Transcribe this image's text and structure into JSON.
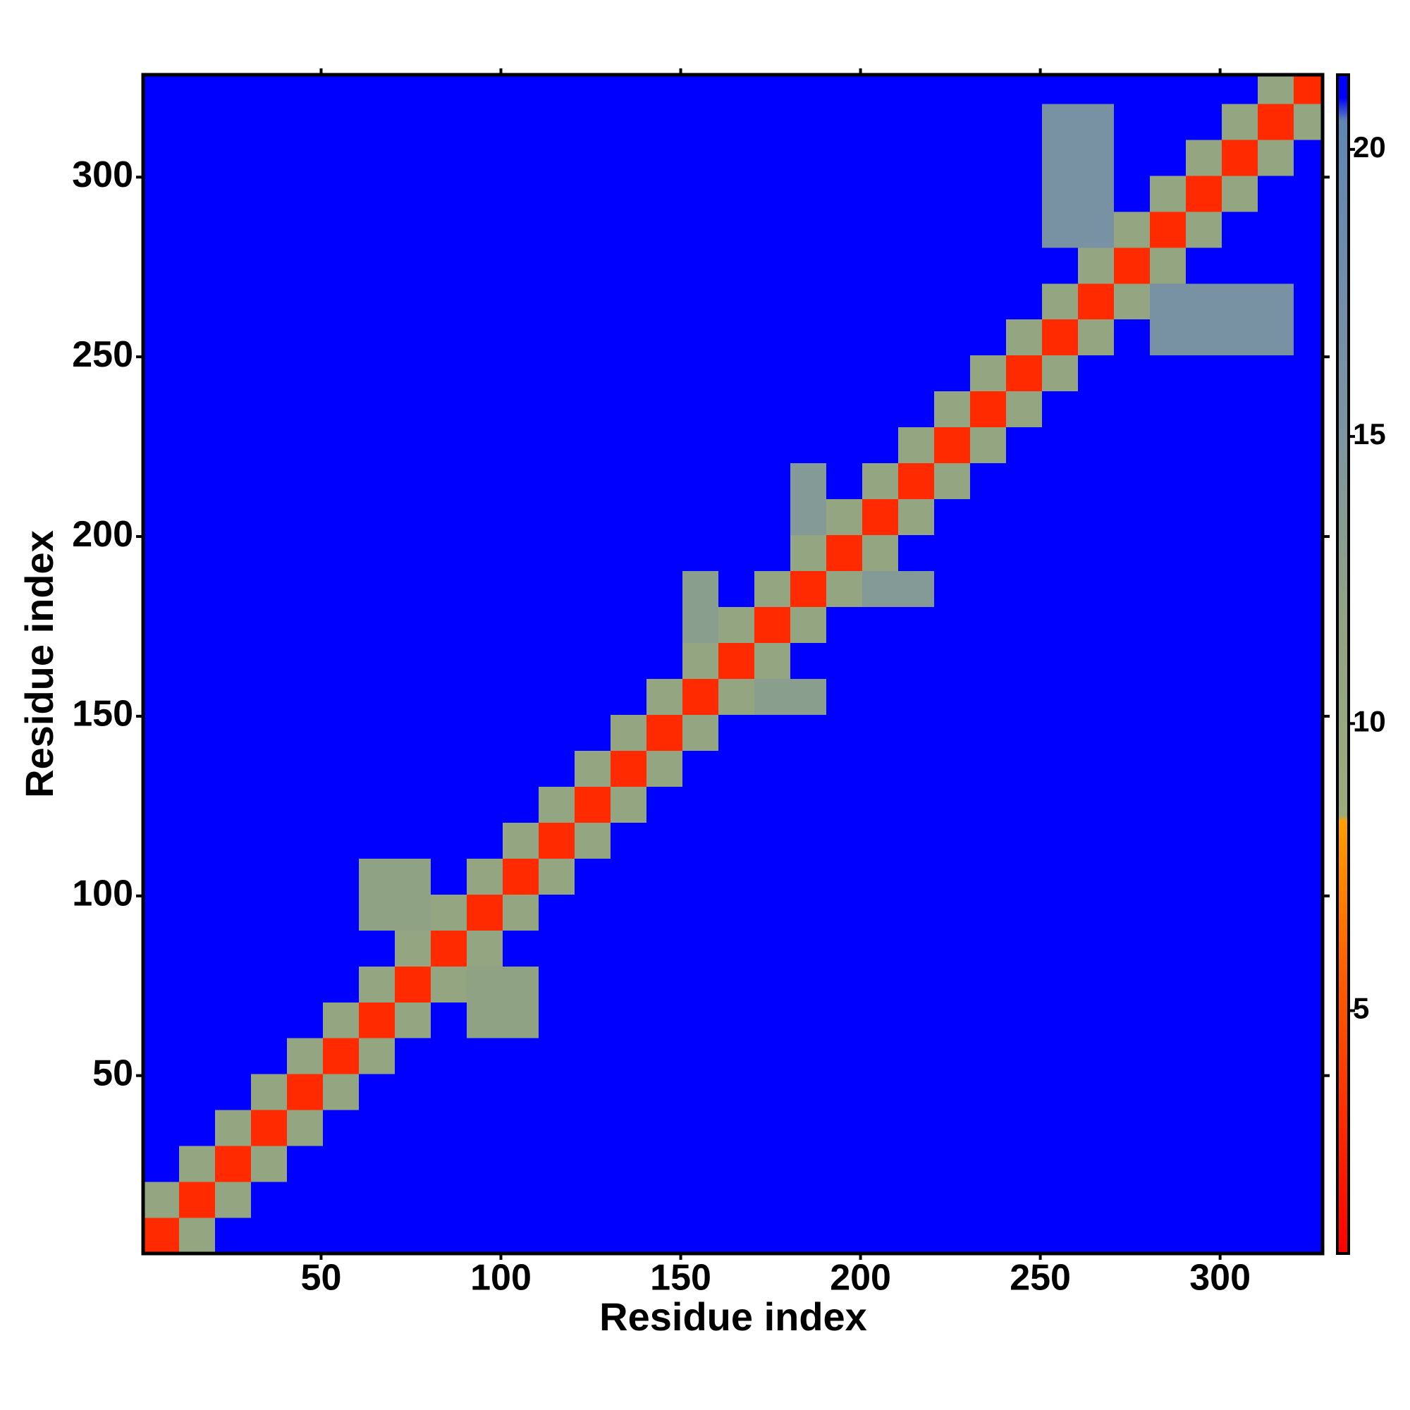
{
  "chart_data": {
    "type": "heatmap",
    "xlabel": "Residue index",
    "ylabel": "Residue index",
    "xlim": [
      0.5,
      328.5
    ],
    "ylim": [
      0.5,
      328.5
    ],
    "xticks": [
      50,
      100,
      150,
      200,
      250,
      300
    ],
    "yticks": [
      50,
      100,
      150,
      200,
      250,
      300
    ],
    "xbins": [
      0.5,
      10.5,
      20.5,
      30.5,
      40.5,
      50.5,
      60.5,
      70.5,
      80.5,
      90.5,
      100.5,
      110.5,
      120.5,
      130.5,
      140.5,
      150.5,
      160.5,
      170.5,
      180.5,
      190.5,
      200.5,
      210.5,
      220.5,
      230.5,
      240.5,
      250.5,
      260.5,
      270.5,
      280.5,
      290.5,
      300.5,
      310.5,
      320.5,
      328.5
    ],
    "ybins": [
      0.5,
      10.5,
      20.5,
      30.5,
      40.5,
      50.5,
      60.5,
      70.5,
      80.5,
      90.5,
      100.5,
      110.5,
      120.5,
      130.5,
      140.5,
      150.5,
      160.5,
      170.5,
      180.5,
      190.5,
      200.5,
      210.5,
      220.5,
      230.5,
      240.5,
      250.5,
      260.5,
      270.5,
      280.5,
      290.5,
      300.5,
      310.5,
      320.5,
      328.5
    ],
    "z": [
      [
        3,
        11,
        21,
        21,
        21,
        21,
        21,
        21,
        21,
        21,
        21,
        21,
        21,
        21,
        21,
        21,
        21,
        21,
        21,
        21,
        21,
        21,
        21,
        21,
        21,
        21,
        21,
        21,
        21,
        21,
        21,
        21,
        21
      ],
      [
        11,
        3,
        11,
        21,
        21,
        21,
        21,
        21,
        21,
        21,
        21,
        21,
        21,
        21,
        21,
        21,
        21,
        21,
        21,
        21,
        21,
        21,
        21,
        21,
        21,
        21,
        21,
        21,
        21,
        21,
        21,
        21,
        21
      ],
      [
        21,
        11,
        3,
        11,
        21,
        21,
        21,
        21,
        21,
        21,
        21,
        21,
        21,
        21,
        21,
        21,
        21,
        21,
        21,
        21,
        21,
        21,
        21,
        21,
        21,
        21,
        21,
        21,
        21,
        21,
        21,
        21,
        21
      ],
      [
        21,
        21,
        11,
        3,
        11,
        21,
        21,
        21,
        21,
        21,
        21,
        21,
        21,
        21,
        21,
        21,
        21,
        21,
        21,
        21,
        21,
        21,
        21,
        21,
        21,
        21,
        21,
        21,
        21,
        21,
        21,
        21,
        21
      ],
      [
        21,
        21,
        21,
        11,
        3,
        11,
        21,
        21,
        21,
        21,
        21,
        21,
        21,
        21,
        21,
        21,
        21,
        21,
        21,
        21,
        21,
        21,
        21,
        21,
        21,
        21,
        21,
        21,
        21,
        21,
        21,
        21,
        21
      ],
      [
        21,
        21,
        21,
        21,
        11,
        3,
        11,
        21,
        21,
        21,
        21,
        21,
        21,
        21,
        21,
        21,
        21,
        21,
        21,
        21,
        21,
        21,
        21,
        21,
        21,
        21,
        21,
        21,
        21,
        21,
        21,
        21,
        21
      ],
      [
        21,
        21,
        21,
        21,
        21,
        11,
        3,
        11,
        21,
        12,
        12,
        21,
        21,
        21,
        21,
        21,
        21,
        21,
        21,
        21,
        21,
        21,
        21,
        21,
        21,
        21,
        21,
        21,
        21,
        21,
        21,
        21,
        21
      ],
      [
        21,
        21,
        21,
        21,
        21,
        21,
        11,
        3,
        11,
        12,
        12,
        21,
        21,
        21,
        21,
        21,
        21,
        21,
        21,
        21,
        21,
        21,
        21,
        21,
        21,
        21,
        21,
        21,
        21,
        21,
        21,
        21,
        21
      ],
      [
        21,
        21,
        21,
        21,
        21,
        21,
        21,
        11,
        3,
        11,
        21,
        21,
        21,
        21,
        21,
        21,
        21,
        21,
        21,
        21,
        21,
        21,
        21,
        21,
        21,
        21,
        21,
        21,
        21,
        21,
        21,
        21,
        21
      ],
      [
        21,
        21,
        21,
        21,
        21,
        21,
        12,
        12,
        11,
        3,
        11,
        21,
        21,
        21,
        21,
        21,
        21,
        21,
        21,
        21,
        21,
        21,
        21,
        21,
        21,
        21,
        21,
        21,
        21,
        21,
        21,
        21,
        21
      ],
      [
        21,
        21,
        21,
        21,
        21,
        21,
        12,
        12,
        21,
        11,
        3,
        11,
        21,
        21,
        21,
        21,
        21,
        21,
        21,
        21,
        21,
        21,
        21,
        21,
        21,
        21,
        21,
        21,
        21,
        21,
        21,
        21,
        21
      ],
      [
        21,
        21,
        21,
        21,
        21,
        21,
        21,
        21,
        21,
        21,
        11,
        3,
        11,
        21,
        21,
        21,
        21,
        21,
        21,
        21,
        21,
        21,
        21,
        21,
        21,
        21,
        21,
        21,
        21,
        21,
        21,
        21,
        21
      ],
      [
        21,
        21,
        21,
        21,
        21,
        21,
        21,
        21,
        21,
        21,
        21,
        11,
        3,
        11,
        21,
        21,
        21,
        21,
        21,
        21,
        21,
        21,
        21,
        21,
        21,
        21,
        21,
        21,
        21,
        21,
        21,
        21,
        21
      ],
      [
        21,
        21,
        21,
        21,
        21,
        21,
        21,
        21,
        21,
        21,
        21,
        21,
        11,
        3,
        11,
        21,
        21,
        21,
        21,
        21,
        21,
        21,
        21,
        21,
        21,
        21,
        21,
        21,
        21,
        21,
        21,
        21,
        21
      ],
      [
        21,
        21,
        21,
        21,
        21,
        21,
        21,
        21,
        21,
        21,
        21,
        21,
        21,
        11,
        3,
        11,
        21,
        21,
        21,
        21,
        21,
        21,
        21,
        21,
        21,
        21,
        21,
        21,
        21,
        21,
        21,
        21,
        21
      ],
      [
        21,
        21,
        21,
        21,
        21,
        21,
        21,
        21,
        21,
        21,
        21,
        21,
        21,
        21,
        11,
        3,
        11,
        13,
        13,
        21,
        21,
        21,
        21,
        21,
        21,
        21,
        21,
        21,
        21,
        21,
        21,
        21,
        21
      ],
      [
        21,
        21,
        21,
        21,
        21,
        21,
        21,
        21,
        21,
        21,
        21,
        21,
        21,
        21,
        21,
        11,
        3,
        11,
        21,
        21,
        21,
        21,
        21,
        21,
        21,
        21,
        21,
        21,
        21,
        21,
        21,
        21,
        21
      ],
      [
        21,
        21,
        21,
        21,
        21,
        21,
        21,
        21,
        21,
        21,
        21,
        21,
        21,
        21,
        21,
        13,
        11,
        3,
        11,
        21,
        21,
        21,
        21,
        21,
        21,
        21,
        21,
        21,
        21,
        21,
        21,
        21,
        21
      ],
      [
        21,
        21,
        21,
        21,
        21,
        21,
        21,
        21,
        21,
        21,
        21,
        21,
        21,
        21,
        21,
        13,
        21,
        11,
        3,
        11,
        14,
        14,
        21,
        21,
        21,
        21,
        21,
        21,
        21,
        21,
        21,
        21,
        21
      ],
      [
        21,
        21,
        21,
        21,
        21,
        21,
        21,
        21,
        21,
        21,
        21,
        21,
        21,
        21,
        21,
        21,
        21,
        21,
        11,
        3,
        11,
        21,
        21,
        21,
        21,
        21,
        21,
        21,
        21,
        21,
        21,
        21,
        21
      ],
      [
        21,
        21,
        21,
        21,
        21,
        21,
        21,
        21,
        21,
        21,
        21,
        21,
        21,
        21,
        21,
        21,
        21,
        21,
        14,
        11,
        3,
        11,
        21,
        21,
        21,
        21,
        21,
        21,
        21,
        21,
        21,
        21,
        21
      ],
      [
        21,
        21,
        21,
        21,
        21,
        21,
        21,
        21,
        21,
        21,
        21,
        21,
        21,
        21,
        21,
        21,
        21,
        21,
        14,
        21,
        11,
        3,
        11,
        21,
        21,
        21,
        21,
        21,
        21,
        21,
        21,
        21,
        21
      ],
      [
        21,
        21,
        21,
        21,
        21,
        21,
        21,
        21,
        21,
        21,
        21,
        21,
        21,
        21,
        21,
        21,
        21,
        21,
        21,
        21,
        21,
        11,
        3,
        11,
        21,
        21,
        21,
        21,
        21,
        21,
        21,
        21,
        21
      ],
      [
        21,
        21,
        21,
        21,
        21,
        21,
        21,
        21,
        21,
        21,
        21,
        21,
        21,
        21,
        21,
        21,
        21,
        21,
        21,
        21,
        21,
        21,
        11,
        3,
        11,
        21,
        21,
        21,
        21,
        21,
        21,
        21,
        21
      ],
      [
        21,
        21,
        21,
        21,
        21,
        21,
        21,
        21,
        21,
        21,
        21,
        21,
        21,
        21,
        21,
        21,
        21,
        21,
        21,
        21,
        21,
        21,
        21,
        11,
        3,
        11,
        21,
        21,
        21,
        21,
        21,
        21,
        21
      ],
      [
        21,
        21,
        21,
        21,
        21,
        21,
        21,
        21,
        21,
        21,
        21,
        21,
        21,
        21,
        21,
        21,
        21,
        21,
        21,
        21,
        21,
        21,
        21,
        21,
        11,
        3,
        11,
        21,
        16,
        16,
        16,
        16,
        21
      ],
      [
        21,
        21,
        21,
        21,
        21,
        21,
        21,
        21,
        21,
        21,
        21,
        21,
        21,
        21,
        21,
        21,
        21,
        21,
        21,
        21,
        21,
        21,
        21,
        21,
        21,
        11,
        3,
        11,
        16,
        16,
        16,
        16,
        21
      ],
      [
        21,
        21,
        21,
        21,
        21,
        21,
        21,
        21,
        21,
        21,
        21,
        21,
        21,
        21,
        21,
        21,
        21,
        21,
        21,
        21,
        21,
        21,
        21,
        21,
        21,
        21,
        11,
        3,
        11,
        21,
        21,
        21,
        21
      ],
      [
        21,
        21,
        21,
        21,
        21,
        21,
        21,
        21,
        21,
        21,
        21,
        21,
        21,
        21,
        21,
        21,
        21,
        21,
        21,
        21,
        21,
        21,
        21,
        21,
        21,
        16,
        16,
        11,
        3,
        11,
        21,
        21,
        21
      ],
      [
        21,
        21,
        21,
        21,
        21,
        21,
        21,
        21,
        21,
        21,
        21,
        21,
        21,
        21,
        21,
        21,
        21,
        21,
        21,
        21,
        21,
        21,
        21,
        21,
        21,
        16,
        16,
        21,
        11,
        3,
        11,
        21,
        21
      ],
      [
        21,
        21,
        21,
        21,
        21,
        21,
        21,
        21,
        21,
        21,
        21,
        21,
        21,
        21,
        21,
        21,
        21,
        21,
        21,
        21,
        21,
        21,
        21,
        21,
        21,
        16,
        16,
        21,
        21,
        11,
        3,
        11,
        21
      ],
      [
        21,
        21,
        21,
        21,
        21,
        21,
        21,
        21,
        21,
        21,
        21,
        21,
        21,
        21,
        21,
        21,
        21,
        21,
        21,
        21,
        21,
        21,
        21,
        21,
        21,
        16,
        16,
        21,
        21,
        21,
        11,
        3,
        11
      ],
      [
        21,
        21,
        21,
        21,
        21,
        21,
        21,
        21,
        21,
        21,
        21,
        21,
        21,
        21,
        21,
        21,
        21,
        21,
        21,
        21,
        21,
        21,
        21,
        21,
        21,
        21,
        21,
        21,
        21,
        21,
        21,
        11,
        3
      ]
    ],
    "clim": [
      0.77,
      21.3
    ],
    "cticks": [
      5,
      10,
      15,
      20
    ],
    "colorscale": [
      [
        0.77,
        "#ff0000"
      ],
      [
        3,
        "#ff2a00"
      ],
      [
        6,
        "#ff6600"
      ],
      [
        8.3,
        "#ffa000"
      ],
      [
        8.4,
        "#9cab7a"
      ],
      [
        12,
        "#8fa384"
      ],
      [
        15,
        "#7d95a0"
      ],
      [
        20.5,
        "#5f86b4"
      ],
      [
        20.9,
        "#0000ff"
      ],
      [
        21.3,
        "#0000ff"
      ]
    ]
  }
}
